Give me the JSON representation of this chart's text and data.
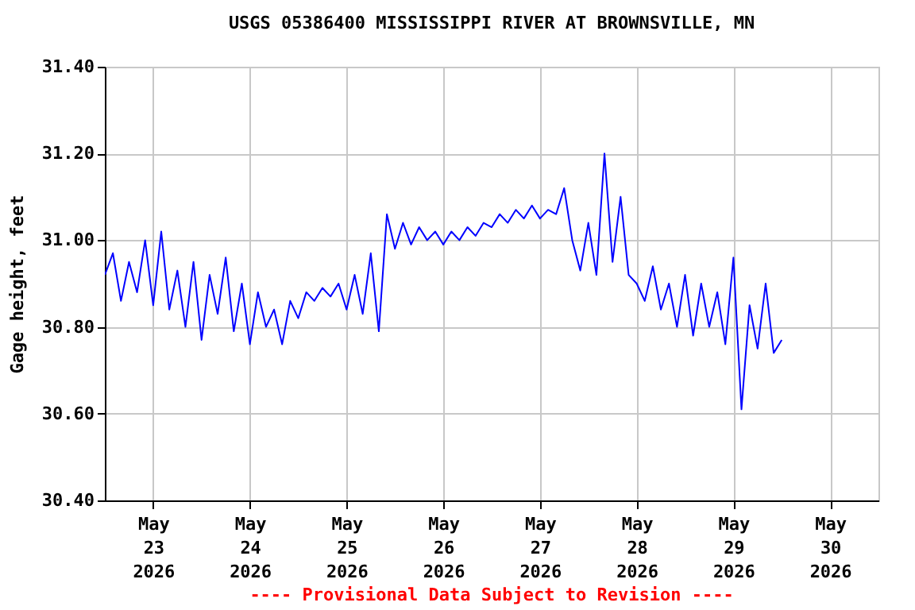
{
  "chart_data": {
    "type": "line",
    "title": "USGS 05386400 MISSISSIPPI RIVER AT BROWNSVILLE, MN",
    "ylabel": "Gage height, feet",
    "annotations": [
      "---- Provisional Data Subject to Revision ----"
    ],
    "x": [
      "2026-05-22T12:00",
      "2026-05-22T14:00",
      "2026-05-22T16:00",
      "2026-05-22T18:00",
      "2026-05-22T20:00",
      "2026-05-22T22:00",
      "2026-05-23T00:00",
      "2026-05-23T02:00",
      "2026-05-23T04:00",
      "2026-05-23T06:00",
      "2026-05-23T08:00",
      "2026-05-23T10:00",
      "2026-05-23T12:00",
      "2026-05-23T14:00",
      "2026-05-23T16:00",
      "2026-05-23T18:00",
      "2026-05-23T20:00",
      "2026-05-23T22:00",
      "2026-05-24T00:00",
      "2026-05-24T02:00",
      "2026-05-24T04:00",
      "2026-05-24T06:00",
      "2026-05-24T08:00",
      "2026-05-24T10:00",
      "2026-05-24T12:00",
      "2026-05-24T14:00",
      "2026-05-24T16:00",
      "2026-05-24T18:00",
      "2026-05-24T20:00",
      "2026-05-24T22:00",
      "2026-05-25T00:00",
      "2026-05-25T02:00",
      "2026-05-25T04:00",
      "2026-05-25T06:00",
      "2026-05-25T08:00",
      "2026-05-25T10:00",
      "2026-05-25T12:00",
      "2026-05-25T14:00",
      "2026-05-25T16:00",
      "2026-05-25T18:00",
      "2026-05-25T20:00",
      "2026-05-25T22:00",
      "2026-05-26T00:00",
      "2026-05-26T02:00",
      "2026-05-26T04:00",
      "2026-05-26T06:00",
      "2026-05-26T08:00",
      "2026-05-26T10:00",
      "2026-05-26T12:00",
      "2026-05-26T14:00",
      "2026-05-26T16:00",
      "2026-05-26T18:00",
      "2026-05-26T20:00",
      "2026-05-26T22:00",
      "2026-05-27T00:00",
      "2026-05-27T02:00",
      "2026-05-27T04:00",
      "2026-05-27T06:00",
      "2026-05-27T08:00",
      "2026-05-27T10:00",
      "2026-05-27T12:00",
      "2026-05-27T14:00",
      "2026-05-27T16:00",
      "2026-05-27T18:00",
      "2026-05-27T20:00",
      "2026-05-27T22:00",
      "2026-05-28T00:00",
      "2026-05-28T02:00",
      "2026-05-28T04:00",
      "2026-05-28T06:00",
      "2026-05-28T08:00",
      "2026-05-28T10:00",
      "2026-05-28T12:00",
      "2026-05-28T14:00",
      "2026-05-28T16:00",
      "2026-05-28T18:00",
      "2026-05-28T20:00",
      "2026-05-28T22:00",
      "2026-05-29T00:00",
      "2026-05-29T02:00",
      "2026-05-29T04:00",
      "2026-05-29T06:00",
      "2026-05-29T08:00",
      "2026-05-29T10:00",
      "2026-05-29T12:00"
    ],
    "series": [
      {
        "color": "#0000ff",
        "values": [
          30.92,
          30.97,
          30.86,
          30.95,
          30.88,
          31.0,
          30.85,
          31.02,
          30.84,
          30.93,
          30.8,
          30.95,
          30.77,
          30.92,
          30.83,
          30.96,
          30.79,
          30.9,
          30.76,
          30.88,
          30.8,
          30.84,
          30.76,
          30.86,
          30.82,
          30.88,
          30.86,
          30.89,
          30.87,
          30.9,
          30.84,
          30.92,
          30.83,
          30.97,
          30.79,
          31.06,
          30.98,
          31.04,
          30.99,
          31.03,
          31.0,
          31.02,
          30.99,
          31.02,
          31.0,
          31.03,
          31.01,
          31.04,
          31.03,
          31.06,
          31.04,
          31.07,
          31.05,
          31.08,
          31.05,
          31.07,
          31.06,
          31.12,
          31.0,
          30.93,
          31.04,
          30.92,
          31.2,
          30.95,
          31.1,
          30.92,
          30.9,
          30.86,
          30.94,
          30.84,
          30.9,
          30.8,
          30.92,
          30.78,
          30.9,
          30.8,
          30.88,
          30.76,
          30.96,
          30.61,
          30.85,
          30.75,
          30.9,
          30.74,
          30.77
        ]
      }
    ],
    "xlim": [
      "2026-05-22T12:00",
      "2026-05-30T12:00"
    ],
    "xticks": [
      {
        "value": "2026-05-23",
        "label": "May 23 2026"
      },
      {
        "value": "2026-05-24",
        "label": "May 24 2026"
      },
      {
        "value": "2026-05-25",
        "label": "May 25 2026"
      },
      {
        "value": "2026-05-26",
        "label": "May 26 2026"
      },
      {
        "value": "2026-05-27",
        "label": "May 27 2026"
      },
      {
        "value": "2026-05-28",
        "label": "May 28 2026"
      },
      {
        "value": "2026-05-29",
        "label": "May 29 2026"
      },
      {
        "value": "2026-05-30",
        "label": "May 30 2026"
      }
    ],
    "ylim": [
      30.4,
      31.4
    ],
    "yticks": [
      {
        "value": 30.4,
        "label": "30.40"
      },
      {
        "value": 30.6,
        "label": "30.60"
      },
      {
        "value": 30.8,
        "label": "30.80"
      },
      {
        "value": 31.0,
        "label": "31.00"
      },
      {
        "value": 31.2,
        "label": "31.20"
      },
      {
        "value": 31.4,
        "label": "31.40"
      }
    ],
    "grid": true,
    "marker": "none",
    "line_style": "solid"
  }
}
